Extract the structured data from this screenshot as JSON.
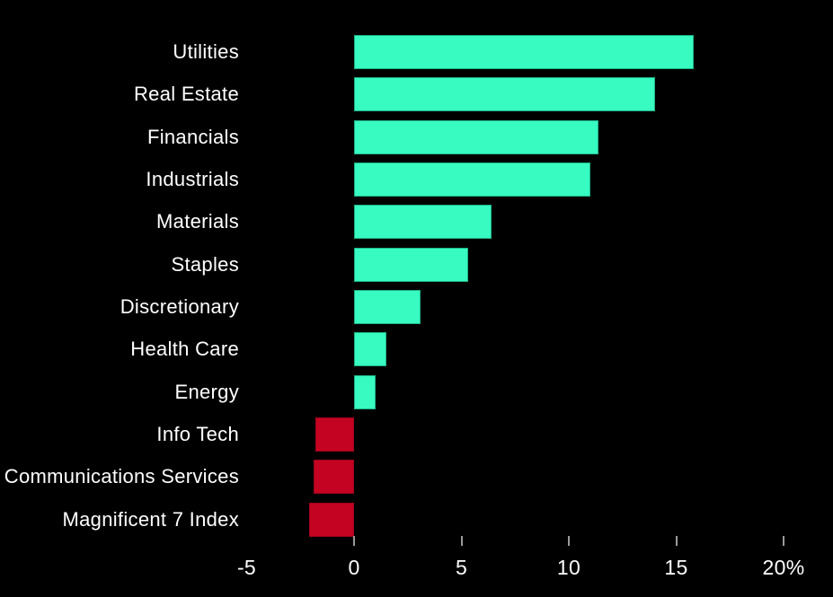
{
  "chart_data": {
    "type": "bar",
    "orientation": "horizontal",
    "title": "",
    "xlabel": "",
    "ylabel": "",
    "unit": "%",
    "categories": [
      "Utilities",
      "Real Estate",
      "Financials",
      "Industrials",
      "Materials",
      "Staples",
      "Discretionary",
      "Health Care",
      "Energy",
      "Info Tech",
      "Communications Services",
      "Magnificent 7 Index"
    ],
    "values": [
      15.8,
      14.0,
      11.4,
      11.0,
      6.4,
      5.3,
      3.1,
      1.5,
      1.0,
      -1.8,
      -1.9,
      -2.1
    ],
    "xlim": [
      -7,
      22.3
    ],
    "x_tick_mark_values": [
      0,
      5,
      10,
      15,
      20
    ],
    "x_tick_labels": [
      "-5",
      "0",
      "5",
      "10",
      "15",
      "20%"
    ],
    "x_tick_label_values": [
      -5,
      0,
      5,
      10,
      15,
      20
    ],
    "grid": false,
    "legend": false,
    "colors": {
      "positive": "#37fbc1",
      "negative": "#c40222",
      "background": "#000000",
      "label": "#ffffff",
      "tick": "#9a9a9a"
    }
  }
}
